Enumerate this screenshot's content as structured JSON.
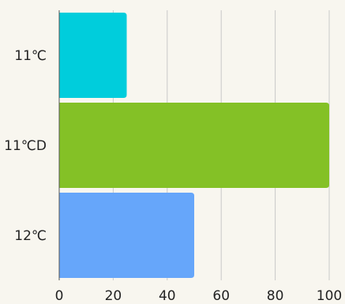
{
  "chart_data": {
    "type": "bar",
    "orientation": "horizontal",
    "categories": [
      "11℃",
      "11℃D",
      "12℃"
    ],
    "values": [
      25,
      100,
      50
    ],
    "colors": [
      "#00cddc",
      "#84c126",
      "#66a6fa"
    ],
    "xlim": [
      0,
      100
    ],
    "xticks": [
      0,
      20,
      40,
      60,
      80,
      100
    ],
    "grid": true,
    "title": "",
    "xlabel": "",
    "ylabel": ""
  }
}
